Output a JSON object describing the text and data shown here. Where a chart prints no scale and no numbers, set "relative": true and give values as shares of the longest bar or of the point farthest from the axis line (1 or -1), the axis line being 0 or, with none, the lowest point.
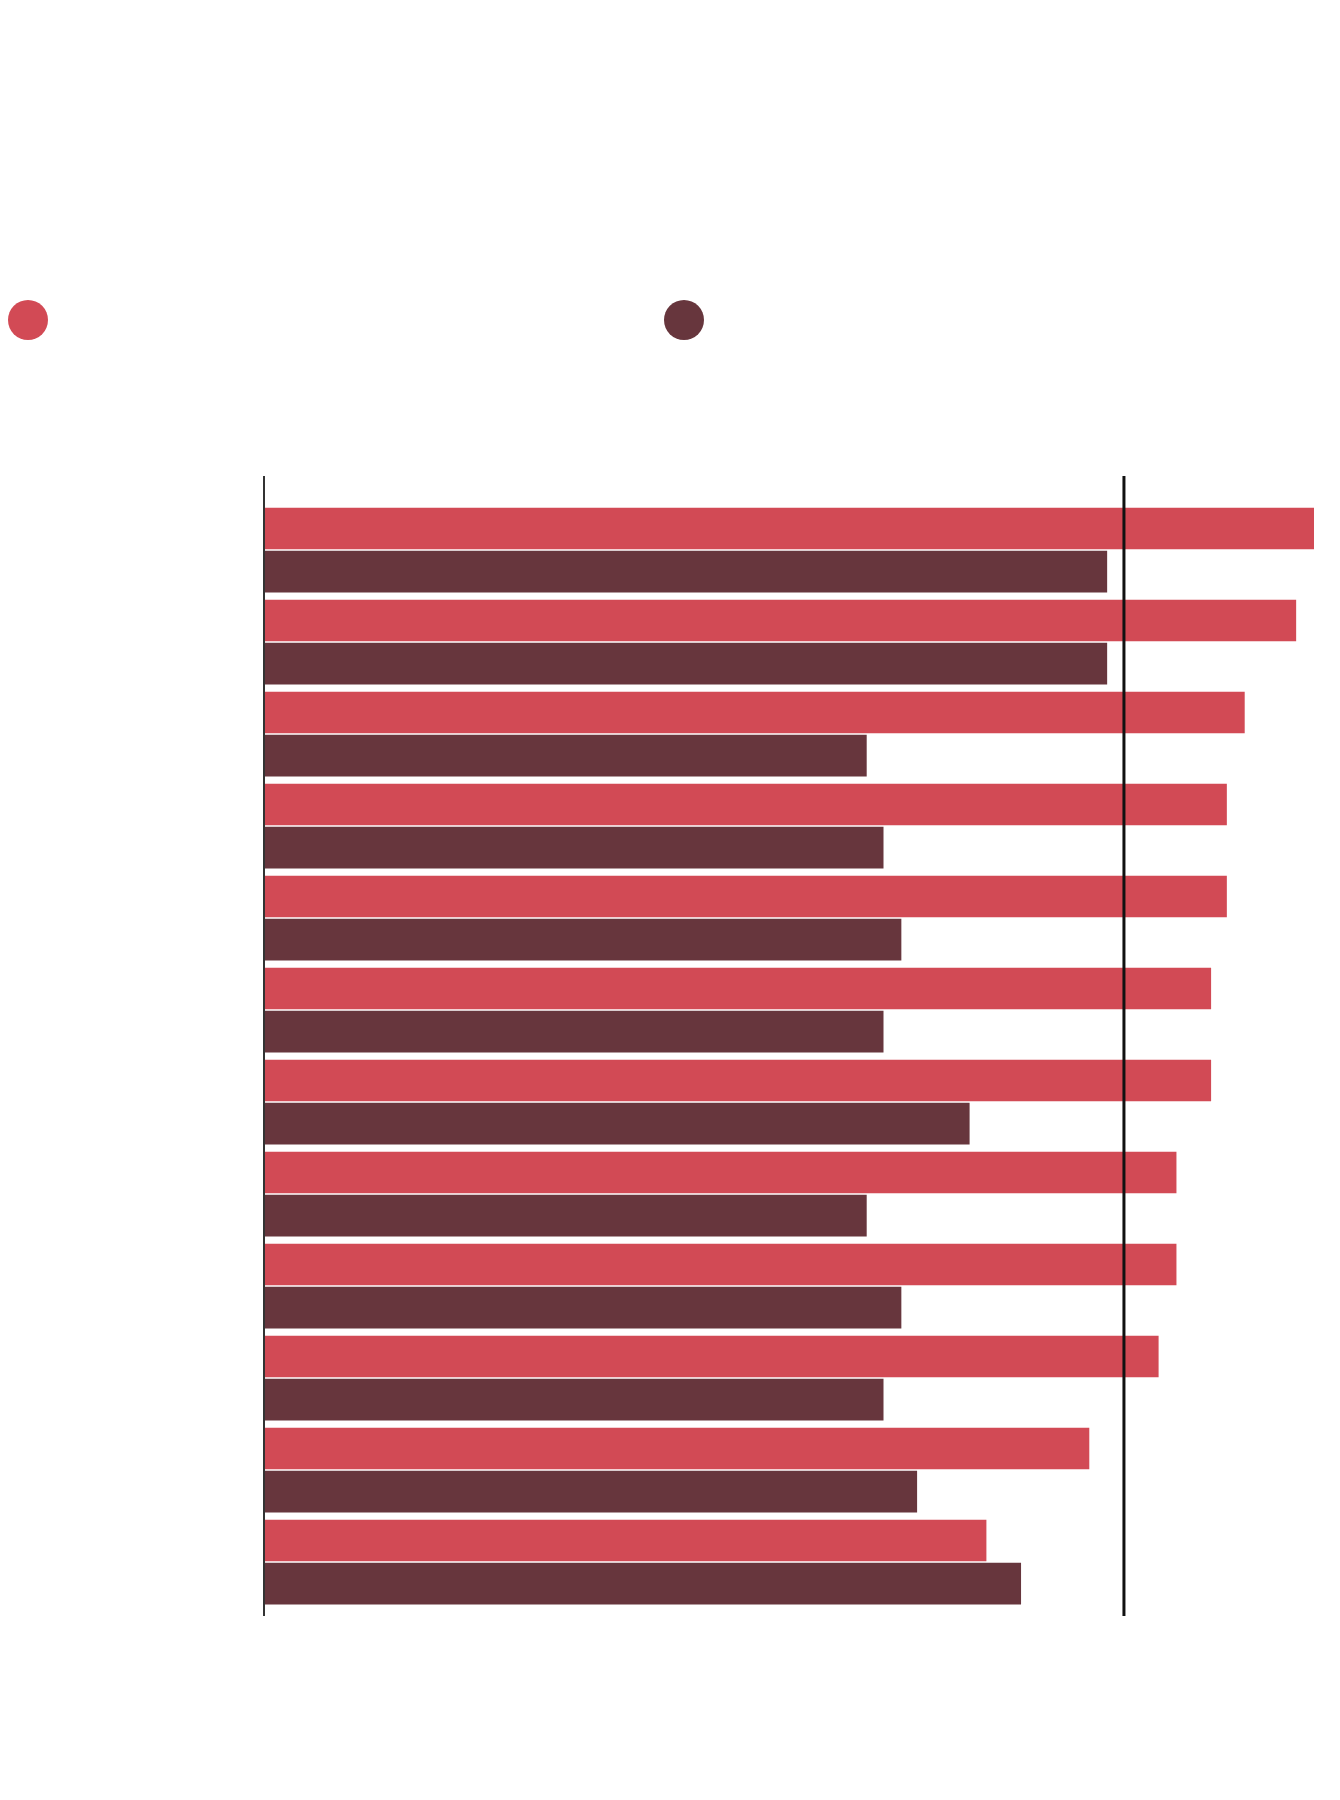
{
  "chart_data": {
    "type": "bar",
    "orientation": "horizontal",
    "relative": true,
    "categories": [
      null,
      null,
      null,
      null,
      null,
      null,
      null,
      null,
      null,
      null,
      null,
      null
    ],
    "series": [
      {
        "color": "#d24a55",
        "values": [
          1,
          0.983,
          0.934,
          0.917,
          0.917,
          0.902,
          0.902,
          0.869,
          0.869,
          0.852,
          0.786,
          0.688
        ]
      },
      {
        "color": "#67363d",
        "values": [
          0.803,
          0.803,
          0.574,
          0.59,
          0.607,
          0.59,
          0.672,
          0.574,
          0.607,
          0.59,
          0.622,
          0.721
        ]
      }
    ],
    "ref_lines": [
      {
        "axis": "x",
        "value": 0.819,
        "color": "#111111"
      }
    ]
  }
}
